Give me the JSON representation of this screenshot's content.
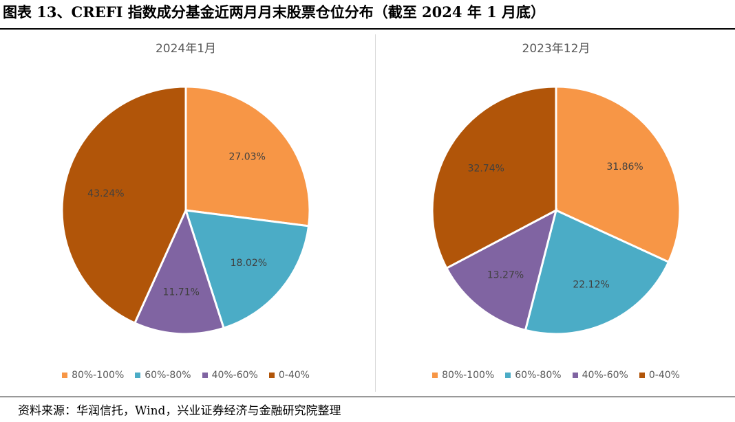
{
  "figure_title": "图表 13、CREFI 指数成分基金近两月月末股票仓位分布（截至 2024 年 1 月底）",
  "source_note": "资料来源：华润信托，Wind，兴业证券经济与金融研究院整理",
  "colors": {
    "80%-100%": "#f79646",
    "60%-80%": "#4bacc6",
    "40%-60%": "#8064a2",
    "0-40%": "#b15509"
  },
  "chart_data": [
    {
      "type": "pie",
      "title": "2024年1月",
      "labels": [
        "80%-100%",
        "60%-80%",
        "40%-60%",
        "0-40%"
      ],
      "values": [
        27.03,
        18.02,
        11.71,
        43.24
      ],
      "value_labels": [
        "27.03%",
        "18.02%",
        "11.71%",
        "43.24%"
      ],
      "legend": "bottom"
    },
    {
      "type": "pie",
      "title": "2023年12月",
      "labels": [
        "80%-100%",
        "60%-80%",
        "40%-60%",
        "0-40%"
      ],
      "values": [
        31.86,
        22.12,
        13.27,
        32.74
      ],
      "value_labels": [
        "31.86%",
        "22.12%",
        "13.27%",
        "32.74%"
      ],
      "legend": "bottom"
    }
  ]
}
